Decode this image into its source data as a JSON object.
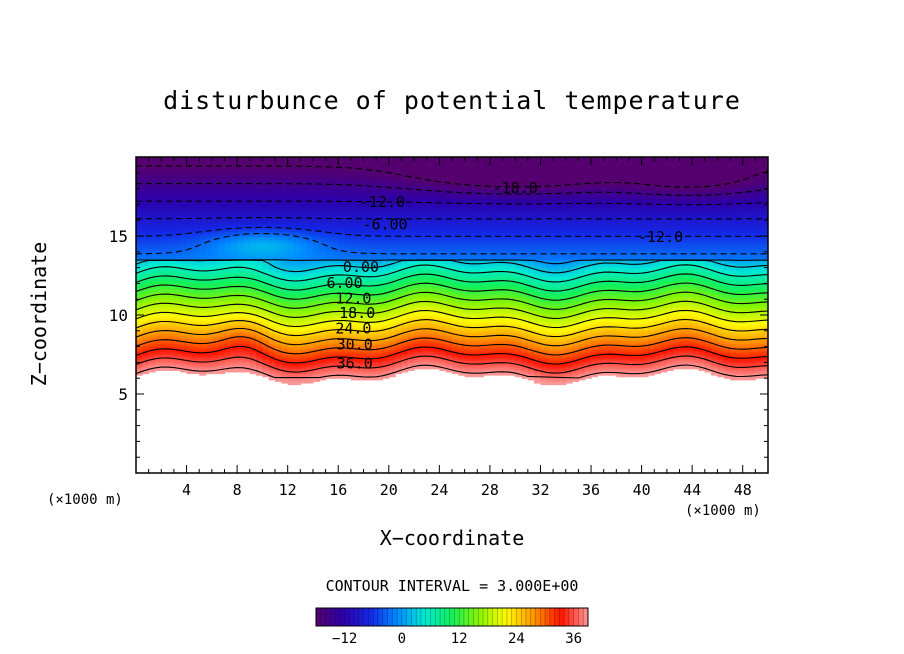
{
  "chart_data": {
    "type": "heatmap",
    "title": "disturbunce of potential temperature",
    "xlabel": "X−coordinate",
    "ylabel": "Z−coordinate",
    "x_unit_label": "(×1000 m)",
    "xlim": [
      0,
      50
    ],
    "ylim": [
      0,
      20
    ],
    "x_ticks": [
      4,
      8,
      12,
      16,
      20,
      24,
      28,
      32,
      36,
      40,
      44,
      48
    ],
    "y_ticks": [
      5,
      10,
      15
    ],
    "contour_interval_text": "CONTOUR INTERVAL = 3.000E+00",
    "colorbar": {
      "min": -18,
      "max": 39,
      "ticks": [
        -12,
        0,
        12,
        24,
        36
      ]
    },
    "data_lower_bound_z": 6.5,
    "contour_levels": [
      -18,
      -15,
      -12,
      -9,
      -6,
      -3,
      0,
      3,
      6,
      9,
      12,
      15,
      18,
      21,
      24,
      27,
      30,
      33,
      36,
      39
    ],
    "contour_labels": [
      {
        "text": "-18.0",
        "x": 30,
        "z": 18.1
      },
      {
        "text": "-12.0",
        "x": 19.5,
        "z": 17.2
      },
      {
        "text": "-6.00",
        "x": 19.7,
        "z": 15.8
      },
      {
        "text": "-12.0",
        "x": 41.5,
        "z": 15.0
      },
      {
        "text": "0.00",
        "x": 17.8,
        "z": 13.1
      },
      {
        "text": "6.00",
        "x": 16.5,
        "z": 12.1
      },
      {
        "text": "12.0",
        "x": 17.2,
        "z": 11.1
      },
      {
        "text": "18.0",
        "x": 17.5,
        "z": 10.2
      },
      {
        "text": "24.0",
        "x": 17.2,
        "z": 9.2
      },
      {
        "text": "30.0",
        "x": 17.3,
        "z": 8.2
      },
      {
        "text": "36.0",
        "x": 17.3,
        "z": 7.0
      }
    ],
    "legend": "bottom"
  }
}
